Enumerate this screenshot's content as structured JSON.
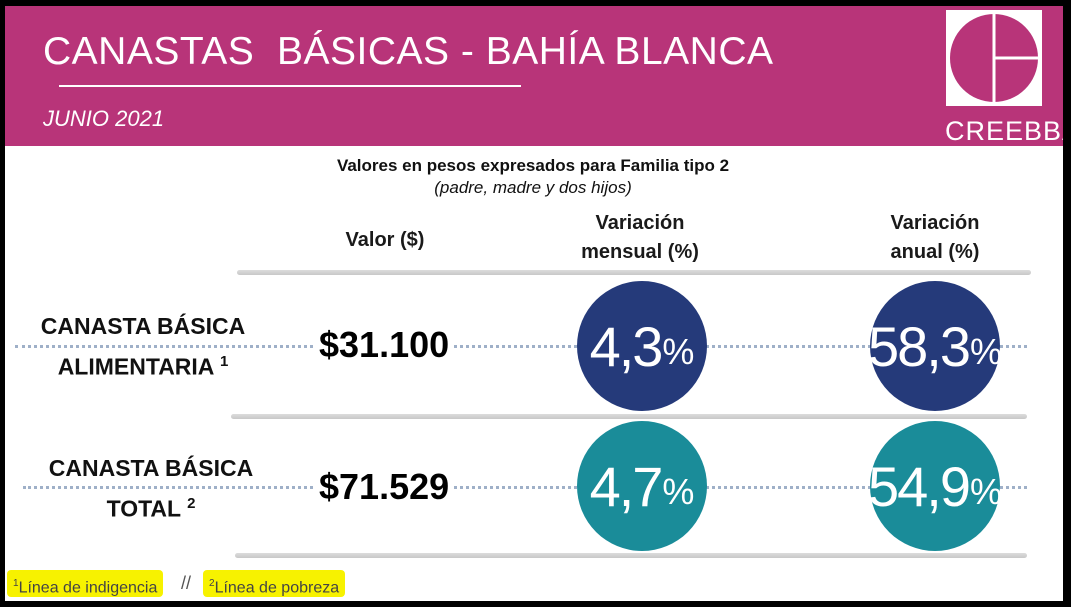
{
  "header": {
    "title": "CANASTAS  BÁSICAS - BAHÍA BLANCA",
    "date": "JUNIO 2021",
    "logo_text": "CREEBBA",
    "background_color": "#b83479"
  },
  "subtitle": {
    "line1": "Valores en pesos expresados para Familia tipo 2",
    "line2": "(padre, madre y dos hijos)"
  },
  "columns": {
    "valor": "Valor ($)",
    "mensual_line1": "Variación",
    "mensual_line2": "mensual (%)",
    "anual_line1": "Variación",
    "anual_line2": "anual (%)"
  },
  "rows": [
    {
      "label_line1": "CANASTA BÁSICA",
      "label_line2": "ALIMENTARIA",
      "note": "1",
      "value": "$31.100",
      "monthly": "4,3",
      "annual": "58,3",
      "pct_symbol": "%",
      "circle_color": "#253a7a"
    },
    {
      "label_line1": "CANASTA BÁSICA",
      "label_line2": "TOTAL",
      "note": "2",
      "value": "$71.529",
      "monthly": "4,7",
      "annual": "54,9",
      "pct_symbol": "%",
      "circle_color": "#1a8c99"
    }
  ],
  "footnotes": {
    "note1_mark": "1",
    "note1_text": "Línea de indigencia",
    "separator": "//",
    "note2_mark": "2",
    "note2_text": "Línea de pobreza",
    "highlight_color": "#f7f200"
  }
}
